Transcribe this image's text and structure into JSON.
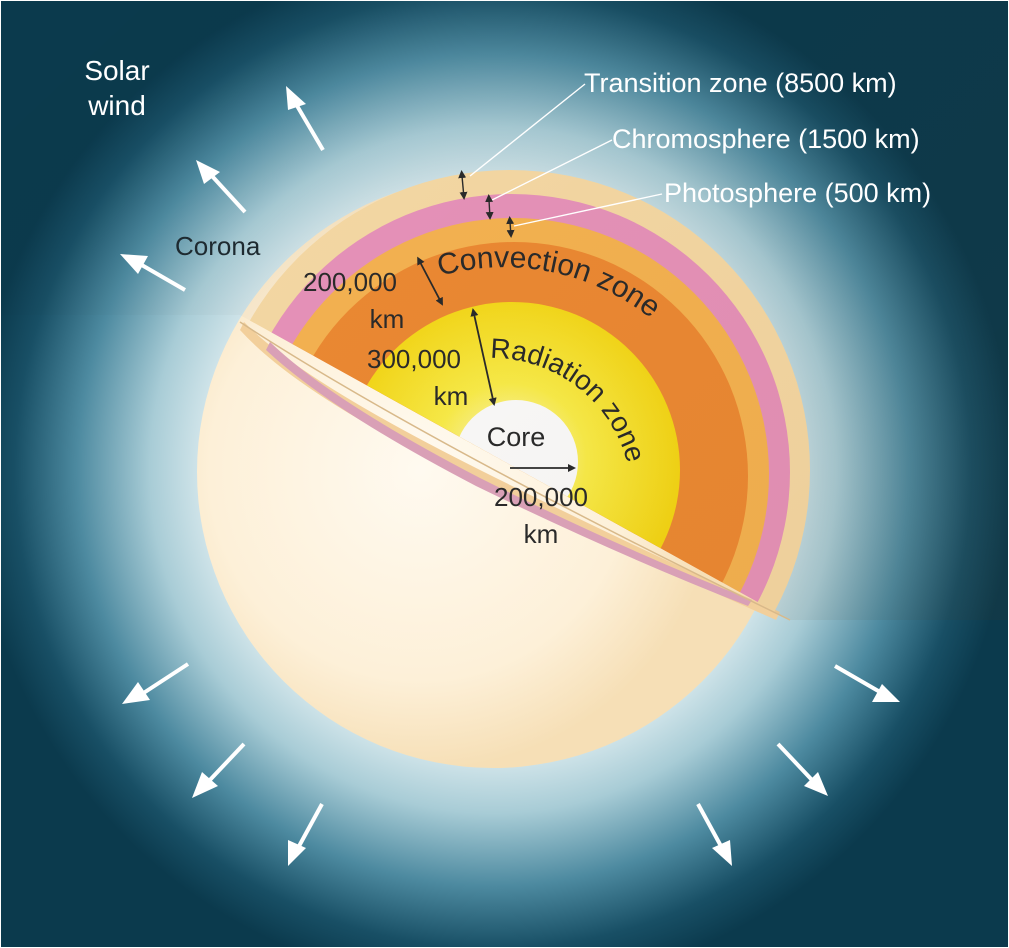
{
  "labels": {
    "solar_wind_line1": "Solar",
    "solar_wind_line2": "wind",
    "corona": "Corona",
    "transition_zone": "Transition zone (8500 km)",
    "chromosphere": "Chromosphere (1500 km)",
    "photosphere": "Photosphere (500 km)",
    "convection_zone": "Convection zone",
    "radiation_zone": "Radiation zone",
    "core": "Core",
    "convection_thickness_line1": "200,000",
    "convection_thickness_line2": "km",
    "radiation_thickness_line1": "300,000",
    "radiation_thickness_line2": "km",
    "core_radius_line1": "200,000",
    "core_radius_line2": "km"
  },
  "colors": {
    "space_background": "#0b3a4d",
    "corona_glow": "#e6f1f3",
    "sphere_surface": "#fbecd2",
    "transition_zone": "#f7d9a8",
    "chromosphere": "#e890b8",
    "photosphere": "#f7b455",
    "convection_zone": "#ef8c36",
    "radiation_zone": "#f9e21a",
    "core": "#ffffff",
    "label_light": "#ffffff",
    "label_dark": "#2a2a2a",
    "arrow": "#ffffff"
  }
}
